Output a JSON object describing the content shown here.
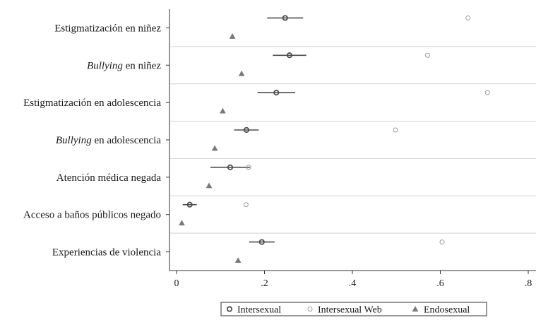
{
  "chart_data": {
    "type": "scatter",
    "categories": [
      {
        "label_main": "Estigmatización en niñez",
        "label_italic": ""
      },
      {
        "label_main": " en niñez",
        "label_italic": "Bullying"
      },
      {
        "label_main": "Estigmatización en adolescencia",
        "label_italic": ""
      },
      {
        "label_main": " en adolescencia",
        "label_italic": "Bullying"
      },
      {
        "label_main": "Atención médica negada",
        "label_italic": ""
      },
      {
        "label_main": "Acceso a baños públicos negado",
        "label_italic": ""
      },
      {
        "label_main": "Experiencias de violencia",
        "label_italic": ""
      }
    ],
    "series": [
      {
        "name": "Intersexual",
        "marker": "circle-bold",
        "color": "#4d4d4d",
        "values": [
          0.247,
          0.257,
          0.227,
          0.159,
          0.122,
          0.03,
          0.194
        ],
        "ci_low": [
          0.206,
          0.219,
          0.184,
          0.131,
          0.077,
          0.014,
          0.165
        ],
        "ci_high": [
          0.288,
          0.295,
          0.27,
          0.187,
          0.167,
          0.046,
          0.223
        ]
      },
      {
        "name": "Intersexual Web",
        "marker": "circle-light",
        "color": "#9a9a9a",
        "values": [
          0.663,
          0.571,
          0.707,
          0.498,
          0.164,
          0.158,
          0.604
        ]
      },
      {
        "name": "Endosexual",
        "marker": "triangle",
        "color": "#7a7a7a",
        "values": [
          0.127,
          0.148,
          0.105,
          0.087,
          0.074,
          0.012,
          0.14
        ]
      }
    ],
    "xticks": [
      {
        "value": 0,
        "label": "0"
      },
      {
        "value": 0.2,
        "label": ".2"
      },
      {
        "value": 0.4,
        "label": ".4"
      },
      {
        "value": 0.6,
        "label": ".6"
      },
      {
        "value": 0.8,
        "label": ".8"
      }
    ],
    "xlim": [
      -0.017,
      0.805
    ],
    "xlabel": "",
    "ylabel": "",
    "title": "",
    "grid": "horizontal separators between categories",
    "legend_position": "bottom"
  }
}
